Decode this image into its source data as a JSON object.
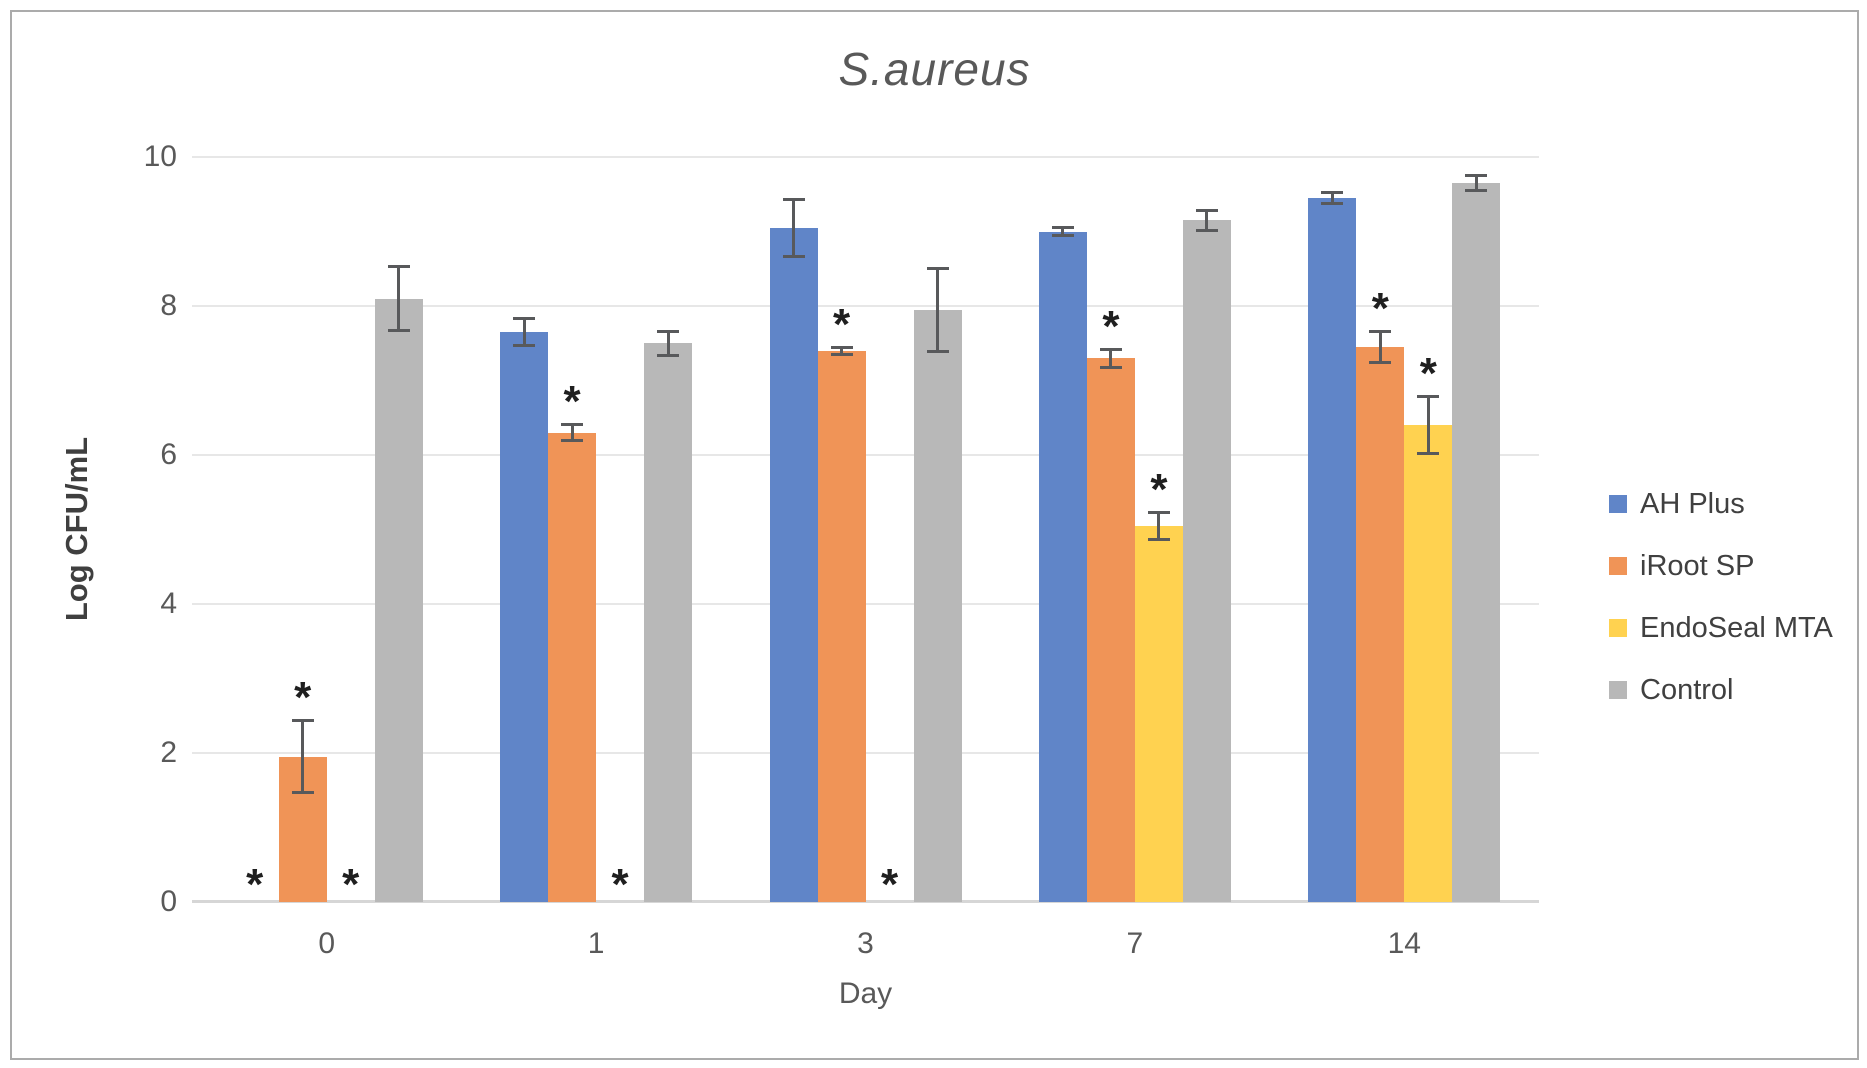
{
  "chart_data": {
    "type": "bar",
    "title": "S.aureus",
    "xlabel": "Day",
    "ylabel": "Log CFU/mL",
    "ylim": [
      0,
      10
    ],
    "yticks": [
      0,
      2,
      4,
      6,
      8,
      10
    ],
    "categories": [
      "0",
      "1",
      "3",
      "7",
      "14"
    ],
    "grid": true,
    "legend_position": "right",
    "significance_marker": "*",
    "error_bar_color": "#58595B",
    "marker_color": "#1F1F1F",
    "series": [
      {
        "name": "AH Plus",
        "color": "#6085C8",
        "values": [
          0,
          7.65,
          9.05,
          9.0,
          9.45
        ],
        "errors": [
          0,
          0.2,
          0.4,
          0.07,
          0.1
        ],
        "significant": [
          true,
          false,
          false,
          false,
          false
        ]
      },
      {
        "name": "iRoot SP",
        "color": "#F09457",
        "values": [
          1.95,
          6.3,
          7.4,
          7.3,
          7.45
        ],
        "errors": [
          0.5,
          0.13,
          0.07,
          0.14,
          0.23
        ],
        "significant": [
          true,
          true,
          true,
          true,
          true
        ]
      },
      {
        "name": "EndoSeal MTA",
        "color": "#FFD250",
        "values": [
          0,
          0,
          0,
          5.05,
          6.4
        ],
        "errors": [
          0,
          0,
          0,
          0.2,
          0.4
        ],
        "significant": [
          true,
          true,
          true,
          true,
          true
        ]
      },
      {
        "name": "Control",
        "color": "#B8B8B8",
        "values": [
          8.1,
          7.5,
          7.95,
          9.15,
          9.65
        ],
        "errors": [
          0.45,
          0.18,
          0.58,
          0.15,
          0.12
        ],
        "significant": [
          false,
          false,
          false,
          false,
          false
        ]
      }
    ]
  }
}
